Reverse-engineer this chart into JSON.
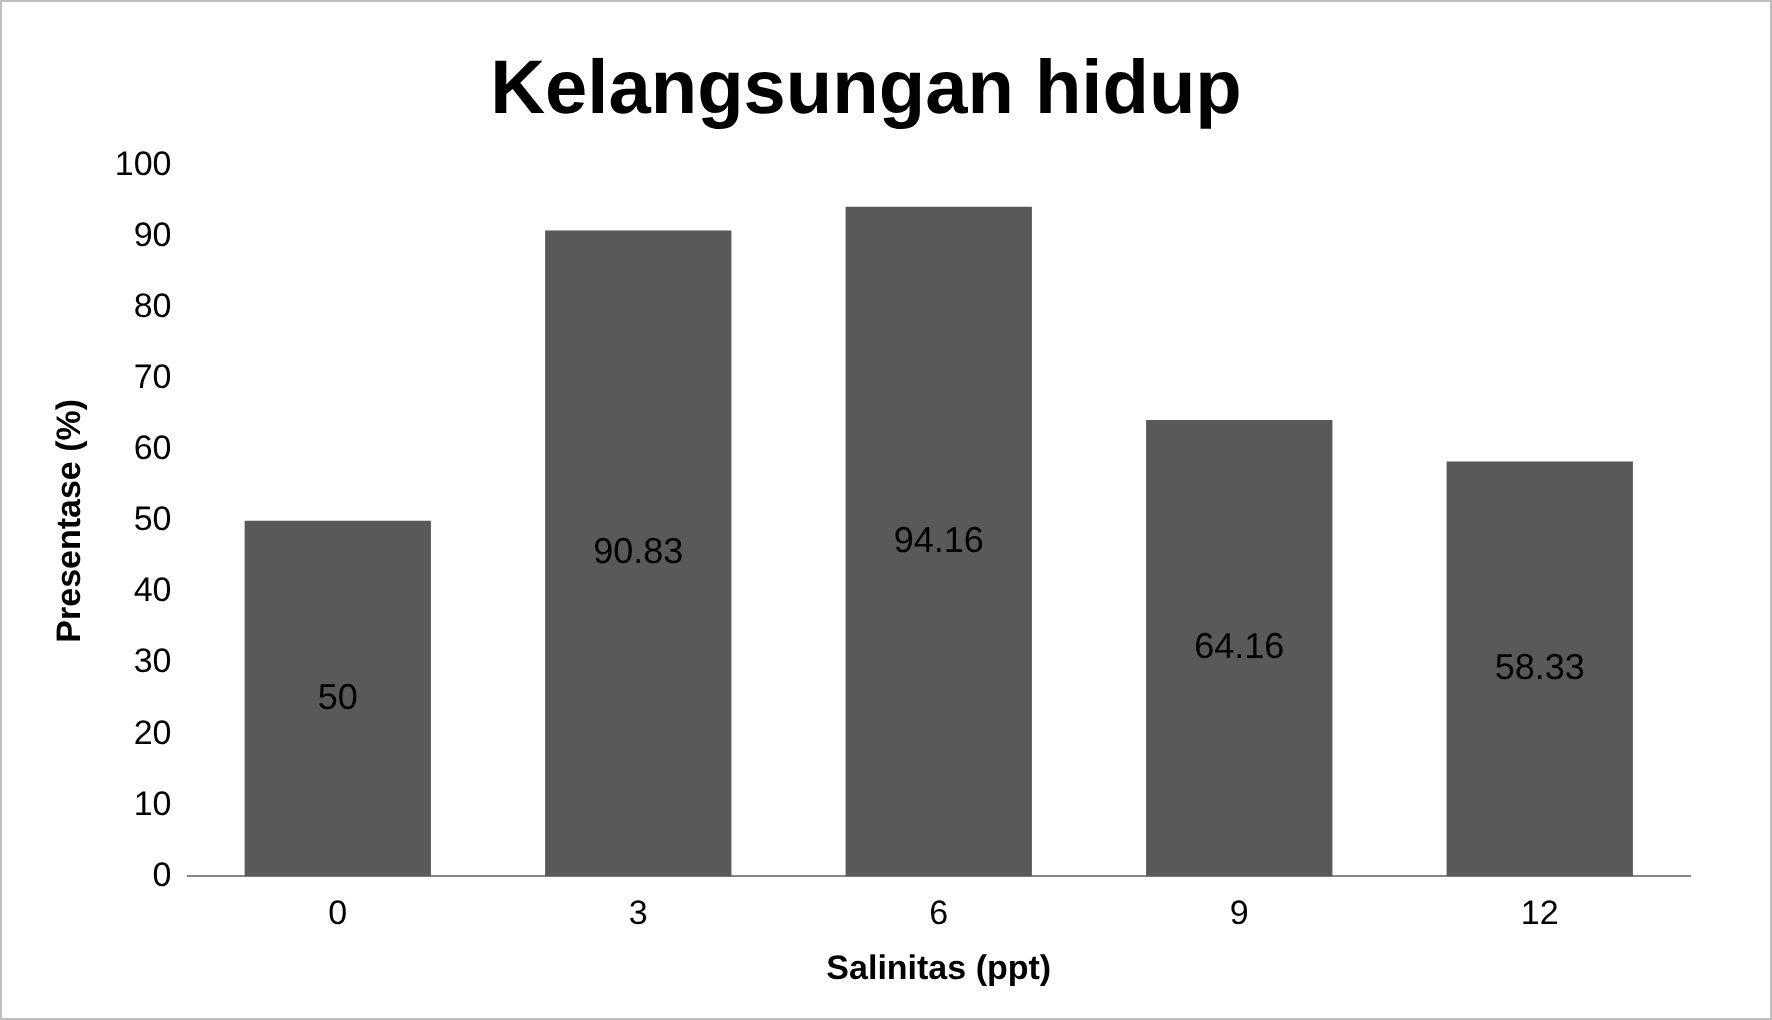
{
  "chart_data": {
    "type": "bar",
    "title": "Kelangsungan hidup",
    "xlabel": "Salinitas (ppt)",
    "ylabel": "Presentase (%)",
    "categories": [
      "0",
      "3",
      "6",
      "9",
      "12"
    ],
    "values": [
      50,
      90.83,
      94.16,
      64.16,
      58.33
    ],
    "color": "#595959",
    "ylim": [
      0,
      100
    ],
    "yticks": [
      0,
      10,
      20,
      30,
      40,
      50,
      60,
      70,
      80,
      90,
      100
    ],
    "grid": false,
    "legend": false,
    "data_labels": true
  }
}
